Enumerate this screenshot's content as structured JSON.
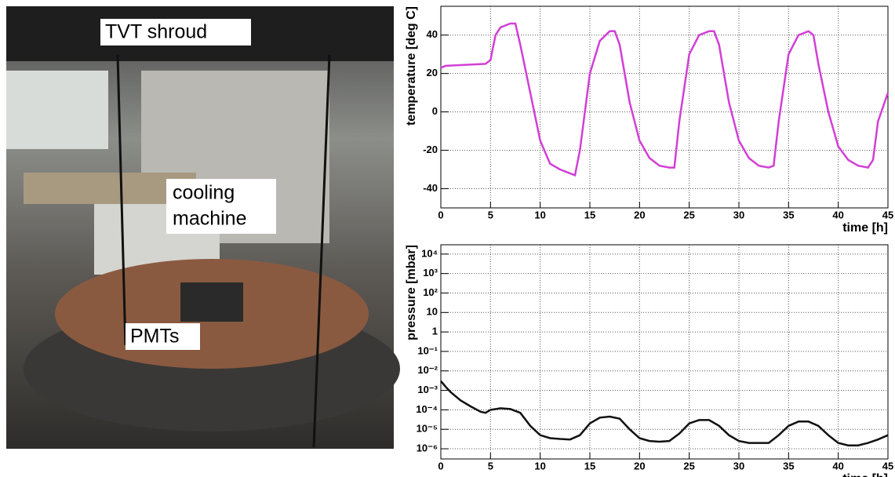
{
  "photo_labels": [
    "TVT shroud",
    "cooling",
    "machine",
    "PMTs"
  ],
  "chart_data": [
    {
      "type": "line",
      "xlabel": "time [h]",
      "ylabel": "temperature [deg C]",
      "xlim": [
        0,
        45
      ],
      "xticks": [
        0,
        5,
        10,
        15,
        20,
        25,
        30,
        35,
        40,
        45
      ],
      "ylim": [
        -50,
        55
      ],
      "yticks": [
        -40,
        -20,
        0,
        20,
        40
      ],
      "grid": true,
      "log_y": false,
      "series": [
        {
          "color": "#d23fd6",
          "x": [
            0,
            0.5,
            4.5,
            5,
            5.5,
            6,
            7,
            7.5,
            8,
            9,
            10,
            11,
            12,
            13,
            13.5,
            14,
            15,
            16,
            17,
            17.5,
            18,
            19,
            20,
            21,
            22,
            23,
            23.5,
            24,
            25,
            26,
            27,
            27.5,
            28,
            29,
            30,
            31,
            32,
            33,
            33.5,
            34,
            35,
            36,
            37,
            37.5,
            38,
            39,
            40,
            41,
            42,
            43,
            43.5,
            44,
            45
          ],
          "values": [
            23,
            24,
            25,
            27,
            40,
            44,
            46,
            46,
            35,
            10,
            -15,
            -27,
            -30,
            -32,
            -33,
            -20,
            20,
            37,
            42,
            42,
            35,
            5,
            -15,
            -24,
            -28,
            -29,
            -29,
            -5,
            30,
            40,
            42,
            42,
            35,
            5,
            -15,
            -24,
            -28,
            -29,
            -28,
            -5,
            30,
            40,
            42,
            40,
            25,
            0,
            -18,
            -25,
            -28,
            -29,
            -25,
            -5,
            10
          ]
        }
      ]
    },
    {
      "type": "line",
      "xlabel": "time [h]",
      "ylabel": "pressure [mbar]",
      "xlim": [
        0,
        45
      ],
      "xticks": [
        0,
        5,
        10,
        15,
        20,
        25,
        30,
        35,
        40,
        45
      ],
      "ylim": [
        3e-07,
        30000
      ],
      "yticks": [
        {
          "value": 10000,
          "label": "10⁴"
        },
        {
          "value": 1000,
          "label": "10³"
        },
        {
          "value": 100,
          "label": "10²"
        },
        10,
        1,
        {
          "value": 0.1,
          "label": "10⁻¹"
        },
        {
          "value": 0.01,
          "label": "10⁻²"
        },
        {
          "value": 0.001,
          "label": "10⁻³"
        },
        {
          "value": 0.0001,
          "label": "10⁻⁴"
        },
        {
          "value": 1e-05,
          "label": "10⁻⁵"
        },
        {
          "value": 1e-06,
          "label": "10⁻⁶"
        }
      ],
      "grid": true,
      "log_y": true,
      "series": [
        {
          "color": "#111111",
          "x": [
            0,
            0.5,
            1,
            2,
            3,
            4,
            4.5,
            5,
            6,
            7,
            8,
            9,
            10,
            11,
            12,
            13,
            14,
            15,
            16,
            17,
            18,
            19,
            20,
            21,
            22,
            23,
            24,
            25,
            26,
            27,
            28,
            29,
            30,
            31,
            32,
            33,
            34,
            35,
            36,
            37,
            38,
            39,
            40,
            41,
            42,
            43,
            44,
            45
          ],
          "values": [
            0.003,
            0.0015,
            0.0008,
            0.0003,
            0.00015,
            8e-05,
            7e-05,
            0.0001,
            0.00012,
            0.00011,
            7e-05,
            1.5e-05,
            5e-06,
            3.5e-06,
            3.2e-06,
            3e-06,
            5e-06,
            2e-05,
            4e-05,
            4.5e-05,
            3.5e-05,
            1e-05,
            3.5e-06,
            2.5e-06,
            2.3e-06,
            2.5e-06,
            6e-06,
            2e-05,
            3e-05,
            3e-05,
            1.5e-05,
            5e-06,
            2.5e-06,
            2e-06,
            2e-06,
            2e-06,
            5e-06,
            1.5e-05,
            2.5e-05,
            2.5e-05,
            1.5e-05,
            5e-06,
            2e-06,
            1.5e-06,
            1.5e-06,
            2e-06,
            3e-06,
            5e-06
          ]
        }
      ]
    }
  ]
}
